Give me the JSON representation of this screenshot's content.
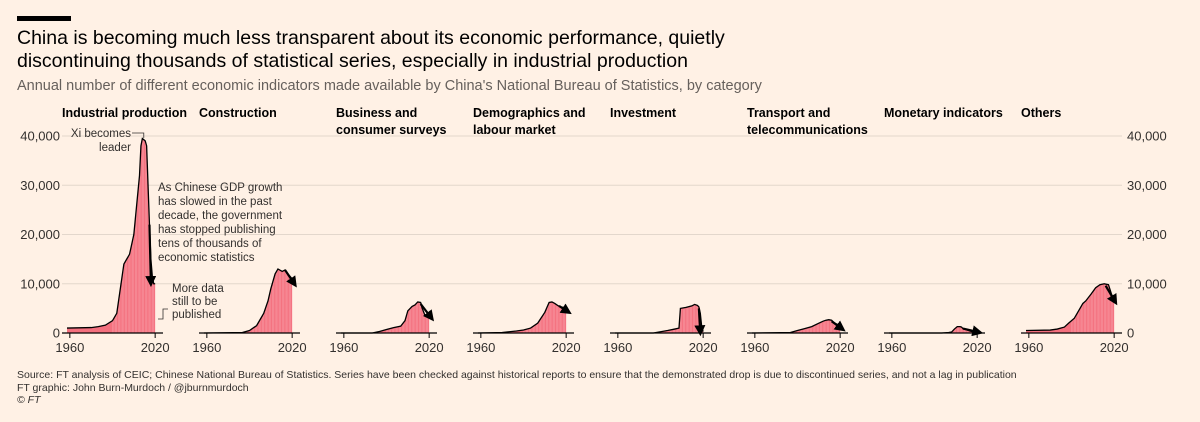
{
  "header": {
    "title": "China is becoming much less transparent about its economic performance, quietly discontinuing thousands of statistical series, especially in industrial production",
    "subtitle": "Annual number of different economic indicators made available by China's National Bureau of Statistics, by category"
  },
  "footer": {
    "source": "Source: FT analysis of CEIC; Chinese National Bureau of Statistics. Series have been checked against historical reports to ensure that the demonstrated drop is due to discontinued series, and not a lag in publication",
    "credit": "FT graphic: John Burn-Murdoch / @jburnmurdoch",
    "copyright": "© FT"
  },
  "colors": {
    "background": "#FFF1E5",
    "area_fill": "#F4707E",
    "area_stroke": "#000000",
    "grid": "#E3D7CC",
    "text": "#33302E"
  },
  "chart_data": {
    "type": "area",
    "title": "China is becoming much less transparent about its economic performance, quietly discontinuing thousands of statistical series, especially in industrial production",
    "subtitle": "Annual number of different economic indicators made available by China's National Bureau of Statistics, by category",
    "xlabel": "",
    "ylabel": "",
    "xlim": [
      1958,
      2022
    ],
    "ylim": [
      0,
      40000
    ],
    "yticks": [
      0,
      10000,
      20000,
      30000,
      40000
    ],
    "ytick_labels": [
      "0",
      "10,000",
      "20,000",
      "30,000",
      "40,000"
    ],
    "xticks": [
      1960,
      2020
    ],
    "xtick_labels": [
      "1960",
      "2020"
    ],
    "grid": true,
    "series": [
      {
        "name": "Industrial production",
        "name_lines": [
          "Industrial production"
        ],
        "x": [
          1958,
          1975,
          1980,
          1985,
          1990,
          1993,
          1995,
          1998,
          2000,
          2002,
          2005,
          2007,
          2009,
          2010,
          2011,
          2013,
          2014,
          2016,
          2017,
          2018,
          2019,
          2020
        ],
        "values": [
          1000,
          1100,
          1300,
          1600,
          2500,
          4000,
          8000,
          14000,
          15000,
          16000,
          20000,
          26000,
          32000,
          38000,
          39500,
          39000,
          38000,
          22000,
          15000,
          11500,
          10000,
          10000
        ],
        "arrow": [
          2016,
          22000,
          2017,
          10000
        ]
      },
      {
        "name": "Construction",
        "name_lines": [
          "Construction"
        ],
        "x": [
          1958,
          1985,
          1990,
          1995,
          2000,
          2003,
          2005,
          2008,
          2010,
          2013,
          2015,
          2017,
          2020
        ],
        "values": [
          0,
          100,
          500,
          1500,
          4000,
          6500,
          9000,
          12000,
          13000,
          12500,
          12800,
          12000,
          11000
        ],
        "arrow": [
          2015,
          12800,
          2022,
          9800
        ]
      },
      {
        "name": "Business and consumer surveys",
        "name_lines": [
          "Business and",
          "consumer surveys"
        ],
        "x": [
          1958,
          1980,
          1985,
          1990,
          1995,
          2000,
          2003,
          2005,
          2008,
          2010,
          2012,
          2014,
          2015,
          2017,
          2019,
          2020
        ],
        "values": [
          0,
          0,
          300,
          700,
          1100,
          1400,
          2500,
          4500,
          5400,
          5700,
          6300,
          6200,
          5100,
          3600,
          3400,
          3000
        ],
        "arrow": [
          2014,
          5900,
          2022,
          2900
        ]
      },
      {
        "name": "Demographics and labour market",
        "name_lines": [
          "Demographics and",
          "labour market"
        ],
        "x": [
          1958,
          1975,
          1985,
          1990,
          1995,
          2000,
          2005,
          2008,
          2010,
          2012,
          2014,
          2016,
          2020
        ],
        "values": [
          0,
          100,
          400,
          600,
          1000,
          2000,
          4200,
          6200,
          6300,
          6000,
          5600,
          5300,
          5100
        ],
        "arrow": [
          2015,
          5500,
          2022,
          4200
        ]
      },
      {
        "name": "Investment",
        "name_lines": [
          "Investment"
        ],
        "x": [
          1958,
          1985,
          1995,
          2000,
          2003,
          2004,
          2008,
          2012,
          2014,
          2016,
          2017,
          2018,
          2019,
          2020
        ],
        "values": [
          0,
          0,
          500,
          800,
          1000,
          5000,
          5200,
          5500,
          5800,
          5600,
          5300,
          4000,
          1200,
          300
        ],
        "arrow": [
          2017,
          5000,
          2018,
          0
        ]
      },
      {
        "name": "Transport and telecommunications",
        "name_lines": [
          "Transport and",
          "telecommunications"
        ],
        "x": [
          1958,
          1985,
          1990,
          1995,
          2000,
          2005,
          2008,
          2010,
          2012,
          2014,
          2016,
          2020
        ],
        "values": [
          0,
          100,
          500,
          900,
          1300,
          2000,
          2400,
          2600,
          2700,
          2600,
          2000,
          1500
        ],
        "arrow": [
          2014,
          2400,
          2022,
          700
        ]
      },
      {
        "name": "Monetary indicators",
        "name_lines": [
          "Monetary indicators"
        ],
        "x": [
          1958,
          1995,
          2000,
          2002,
          2004,
          2006,
          2008,
          2009,
          2010,
          2012,
          2014,
          2016,
          2018,
          2020
        ],
        "values": [
          0,
          0,
          100,
          200,
          800,
          1300,
          1300,
          1200,
          900,
          700,
          500,
          300,
          200,
          100
        ],
        "arrow": [
          2010,
          900,
          2022,
          100
        ]
      },
      {
        "name": "Others",
        "name_lines": [
          "Others"
        ],
        "x": [
          1958,
          1975,
          1980,
          1985,
          1988,
          1992,
          1995,
          1998,
          2000,
          2004,
          2007,
          2010,
          2013,
          2016,
          2018,
          2020
        ],
        "values": [
          500,
          600,
          800,
          1200,
          2000,
          3000,
          4500,
          6000,
          6500,
          8000,
          9200,
          9800,
          10000,
          9800,
          8000,
          6500
        ],
        "arrow": [
          2014,
          9600,
          2021,
          6200
        ]
      }
    ],
    "annotations": [
      {
        "panel": 0,
        "lines": [
          "Xi becomes",
          "leader"
        ],
        "x": 2012,
        "y": 40000
      },
      {
        "panel": 0,
        "lines": [
          "As Chinese GDP growth",
          "has slowed in the past",
          "decade, the government",
          "has stopped publishing",
          "tens of thousands of",
          "economic statistics"
        ]
      },
      {
        "panel": 0,
        "lines": [
          "More data",
          "still to be",
          "published"
        ]
      }
    ]
  }
}
